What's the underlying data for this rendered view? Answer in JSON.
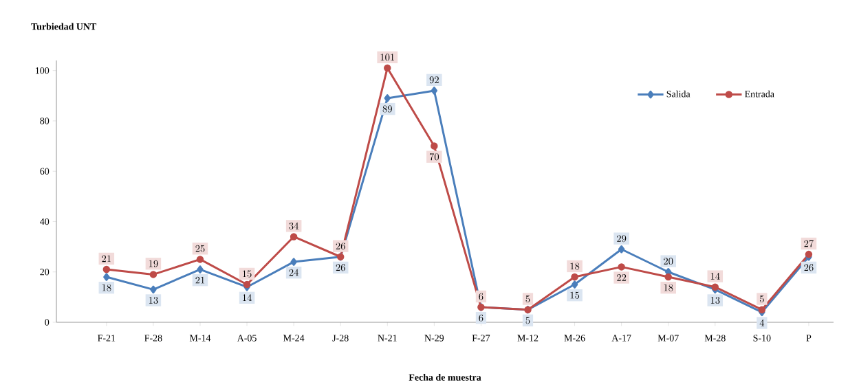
{
  "chart_data": {
    "type": "line",
    "xlabel": "Fecha de muestra",
    "ylabel": "Turbiedad  UNT",
    "categories": [
      "F-21",
      "F-28",
      "M-14",
      "A-05",
      "M-24",
      "J-28",
      "N-21",
      "N-29",
      "F-27",
      "M-12",
      "M-26",
      "A-17",
      "M-07",
      "M-28",
      "S-10",
      "P"
    ],
    "series": [
      {
        "name": "Salida",
        "color": "#4a7ebb",
        "marker": "diamond",
        "values": [
          18,
          13,
          21,
          14,
          24,
          26,
          89,
          92,
          6,
          5,
          15,
          29,
          20,
          13,
          4,
          26
        ]
      },
      {
        "name": "Entrada",
        "color": "#be4b48",
        "marker": "circle",
        "values": [
          21,
          19,
          25,
          15,
          34,
          26,
          101,
          70,
          6,
          5,
          18,
          22,
          18,
          14,
          5,
          27
        ]
      }
    ],
    "ylim": [
      0,
      104
    ],
    "yticks": [
      0,
      20,
      40,
      60,
      80,
      100
    ],
    "data_labels": true,
    "legend": "top right",
    "line_style": "solid"
  }
}
